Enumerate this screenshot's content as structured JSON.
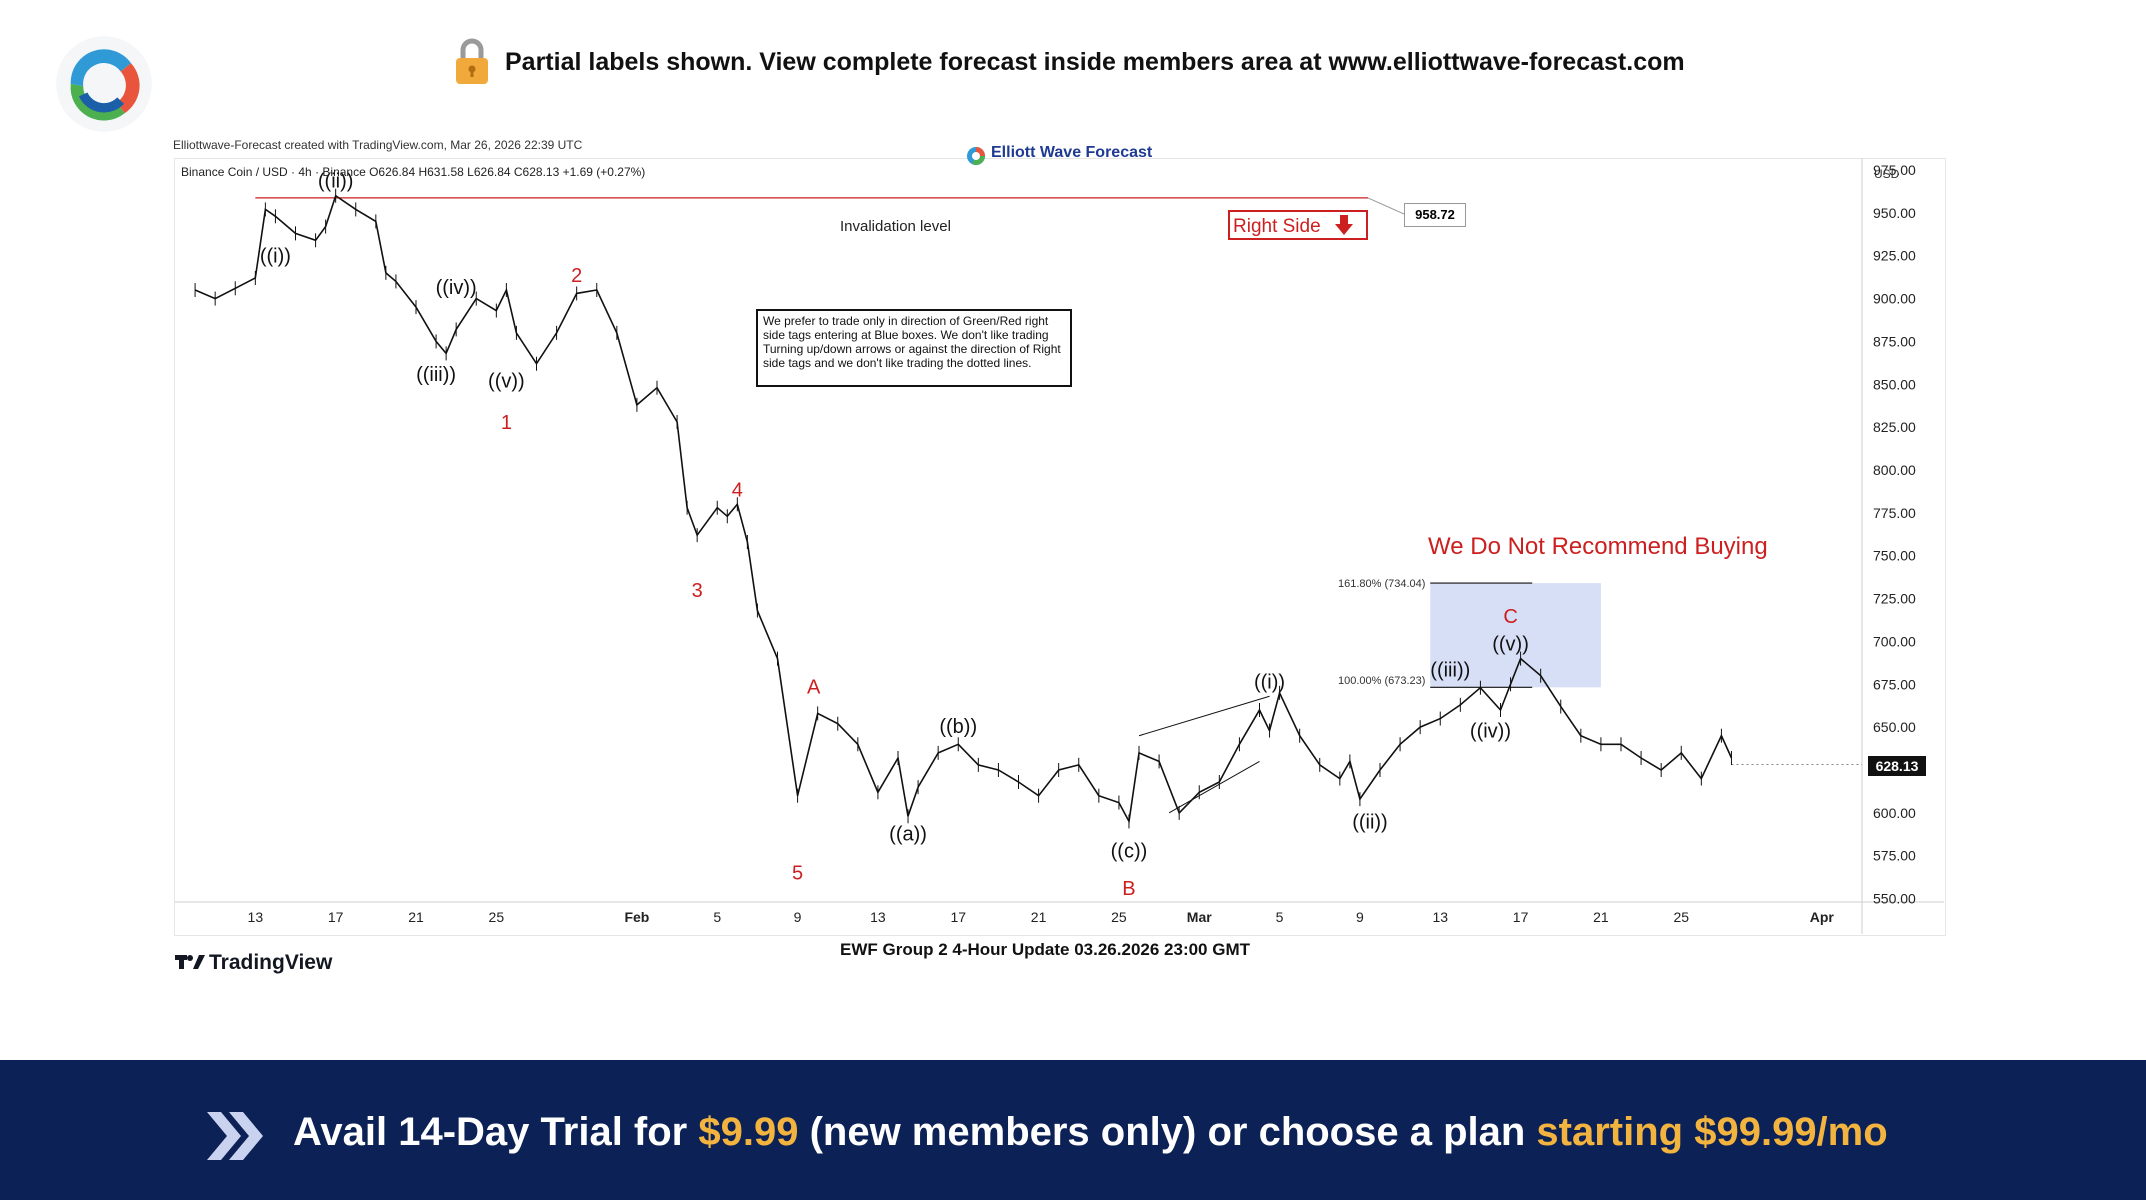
{
  "banner": {
    "text": "Partial labels shown. View complete forecast inside members area at www.elliottwave-forecast.com",
    "lock_icon": "lock-icon"
  },
  "logo_icon": "elliott-wave-forecast-logo",
  "chart_header": {
    "created_by": "Elliottwave-Forecast created with TradingView.com, Mar 26, 2026 22:39 UTC",
    "symbol_line": "Binance Coin / USD · 4h · Binance  O626.84  H631.58  L626.84  C628.13  +1.69 (+0.27%)",
    "watermark": "Elliott Wave Forecast",
    "currency": "USD"
  },
  "annotations": {
    "invalidation": "Invalidation level",
    "right_side": "Right Side",
    "invalidation_price": "958.72",
    "note": "We prefer to trade only in direction of Green/Red right side tags entering at Blue boxes. We don't like trading Turning up/down arrows or against the direction of Right side tags and we don't like trading the dotted lines.",
    "no_buy": "We Do Not Recommend Buying",
    "fib_161": "161.80% (734.04)",
    "fib_100": "100.00% (673.23)",
    "current_price": "628.13"
  },
  "footer": {
    "title": "EWF Group 2 4-Hour Update 03.26.2026 23:00 GMT",
    "tradingview": "TradingView"
  },
  "bottom_bar": {
    "prefix": "Avail 14-Day Trial for ",
    "price1": "$9.99",
    "middle": " (new members only) or choose a plan ",
    "price2": "starting $99.99/mo",
    "chevron_icon": "double-chevron-right-icon"
  },
  "colors": {
    "bear_label": "#cc1f1f",
    "blue_box": "#c9d4f3",
    "bar_bg": "#0c2156",
    "gold": "#f3b43f"
  },
  "chart_data": {
    "type": "line",
    "title": "Binance Coin / USD",
    "xlabel": "",
    "ylabel": "",
    "ylim": [
      550,
      980
    ],
    "y_ticks": [
      "975.00",
      "950.00",
      "925.00",
      "900.00",
      "875.00",
      "850.00",
      "825.00",
      "800.00",
      "775.00",
      "750.00",
      "725.00",
      "700.00",
      "675.00",
      "650.00",
      "625.00",
      "600.00",
      "575.00",
      "550.00"
    ],
    "x_ticks": [
      "13",
      "17",
      "21",
      "25",
      "Feb",
      "5",
      "9",
      "13",
      "17",
      "21",
      "25",
      "Mar",
      "5",
      "9",
      "13",
      "17",
      "21",
      "25",
      "Apr"
    ],
    "x_tick_days": [
      13,
      17,
      21,
      25,
      32,
      36,
      40,
      44,
      48,
      52,
      56,
      60,
      64,
      68,
      72,
      76,
      80,
      84,
      91
    ],
    "grid": false,
    "series": [
      {
        "x": [
          10,
          11,
          12,
          13,
          13.5,
          14,
          15,
          16,
          16.5,
          17,
          18,
          19,
          19.5,
          20,
          21,
          22,
          22.5,
          23,
          24,
          25,
          25.5,
          26,
          27,
          28,
          29,
          30,
          31,
          32,
          33,
          34,
          34.5,
          35,
          36,
          36.5,
          37,
          37.5,
          38,
          39,
          40,
          41,
          42,
          43,
          44,
          45,
          45.5,
          46,
          47,
          48,
          49,
          50,
          51,
          52,
          53,
          54,
          55,
          56,
          56.5,
          57,
          58,
          59,
          60,
          61,
          62,
          63,
          63.5,
          64,
          65,
          66,
          67,
          67.5,
          68,
          69,
          70,
          71,
          72,
          73,
          74,
          75,
          75.5,
          76,
          77,
          78,
          79,
          80,
          81,
          82,
          83,
          84,
          85,
          86,
          86.5
        ],
        "y": [
          905,
          900,
          906,
          912,
          952,
          948,
          938,
          934,
          942,
          960,
          952,
          945,
          915,
          910,
          895,
          875,
          868,
          882,
          900,
          893,
          905,
          880,
          862,
          880,
          903,
          905,
          880,
          838,
          848,
          828,
          778,
          762,
          778,
          773,
          780,
          758,
          718,
          690,
          610,
          658,
          652,
          640,
          612,
          632,
          598,
          615,
          635,
          640,
          628,
          625,
          618,
          610,
          625,
          628,
          610,
          606,
          595,
          635,
          630,
          600,
          612,
          618,
          640,
          660,
          648,
          670,
          645,
          628,
          620,
          630,
          608,
          625,
          640,
          650,
          655,
          663,
          673,
          660,
          675,
          690,
          680,
          662,
          645,
          640,
          640,
          632,
          625,
          635,
          620,
          645,
          632
        ],
        "current": 628.13
      }
    ],
    "invalidation_level": 958.72,
    "fib_levels": [
      {
        "label": "161.80%",
        "value": 734.04
      },
      {
        "label": "100.00%",
        "value": 673.23
      }
    ],
    "blue_box": {
      "x_start": 71.5,
      "x_end": 80,
      "y_low": 673.23,
      "y_high": 734.04
    },
    "wave_labels": [
      {
        "text": "((ii))",
        "x": 17,
        "y": 960,
        "pos": "above",
        "color": "#111"
      },
      {
        "text": "((i))",
        "x": 14,
        "y": 935,
        "pos": "below",
        "color": "#111"
      },
      {
        "text": "((iv))",
        "x": 23,
        "y": 898,
        "pos": "above",
        "color": "#111"
      },
      {
        "text": "((iii))",
        "x": 22,
        "y": 866,
        "pos": "below",
        "color": "#111"
      },
      {
        "text": "((v))",
        "x": 25.5,
        "y": 862,
        "pos": "below",
        "color": "#111"
      },
      {
        "text": "1",
        "x": 25.5,
        "y": 838,
        "pos": "below",
        "color": "#cc1f1f"
      },
      {
        "text": "2",
        "x": 29,
        "y": 905,
        "pos": "above",
        "color": "#cc1f1f"
      },
      {
        "text": "3",
        "x": 35,
        "y": 740,
        "pos": "below",
        "color": "#cc1f1f"
      },
      {
        "text": "4",
        "x": 37,
        "y": 780,
        "pos": "above",
        "color": "#cc1f1f"
      },
      {
        "text": "5",
        "x": 40,
        "y": 575,
        "pos": "below",
        "color": "#cc1f1f"
      },
      {
        "text": "A",
        "x": 40.8,
        "y": 665,
        "pos": "above",
        "color": "#cc1f1f"
      },
      {
        "text": "((a))",
        "x": 45.5,
        "y": 598,
        "pos": "below",
        "color": "#111"
      },
      {
        "text": "((b))",
        "x": 48,
        "y": 642,
        "pos": "above",
        "color": "#111"
      },
      {
        "text": "((c))",
        "x": 56.5,
        "y": 588,
        "pos": "below",
        "color": "#111"
      },
      {
        "text": "B",
        "x": 56.5,
        "y": 566,
        "pos": "below",
        "color": "#cc1f1f"
      },
      {
        "text": "((i))",
        "x": 63.5,
        "y": 668,
        "pos": "above",
        "color": "#111"
      },
      {
        "text": "((ii))",
        "x": 68.5,
        "y": 605,
        "pos": "below",
        "color": "#111"
      },
      {
        "text": "((iii))",
        "x": 72.5,
        "y": 675,
        "pos": "above",
        "color": "#111"
      },
      {
        "text": "((iv))",
        "x": 74.5,
        "y": 658,
        "pos": "below",
        "color": "#111"
      },
      {
        "text": "((v))",
        "x": 75.5,
        "y": 690,
        "pos": "above",
        "color": "#111"
      },
      {
        "text": "C",
        "x": 75.5,
        "y": 706,
        "pos": "above",
        "color": "#cc1f1f"
      }
    ]
  }
}
